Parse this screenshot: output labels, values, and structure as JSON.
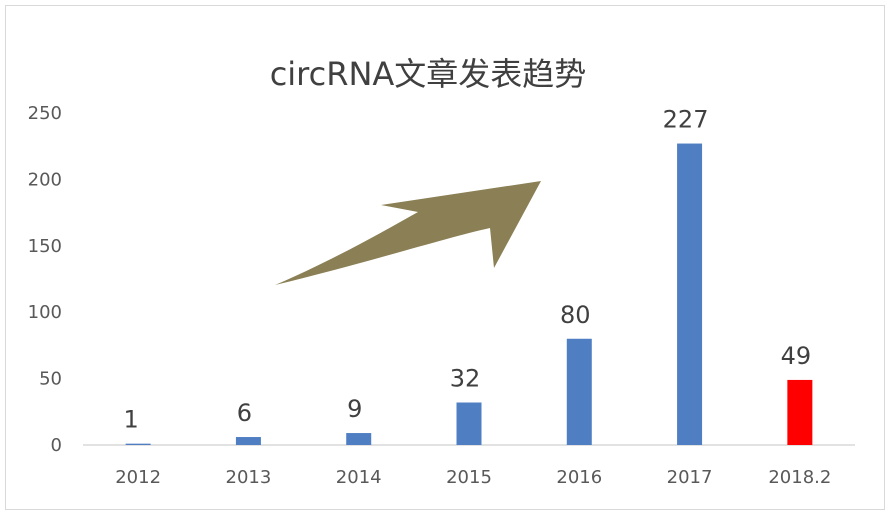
{
  "chart_data": {
    "type": "bar",
    "title": "circRNA文章发表趋势",
    "categories": [
      "2012",
      "2013",
      "2014",
      "2015",
      "2016",
      "2017",
      "2018.2"
    ],
    "values": [
      1,
      6,
      9,
      32,
      80,
      227,
      49
    ],
    "data_labels": [
      "1",
      "6",
      "9",
      "32",
      "80",
      "227",
      "49"
    ],
    "bar_colors": [
      "#4f7fc2",
      "#4f7fc2",
      "#4f7fc2",
      "#4f7fc2",
      "#4f7fc2",
      "#4f7fc2",
      "#ff0000"
    ],
    "yticks": [
      "0",
      "50",
      "100",
      "150",
      "200",
      "250"
    ],
    "ylim": [
      0,
      250
    ],
    "xlabel": "",
    "ylabel": "",
    "grid": false,
    "legend": "none",
    "annotation_arrow_color": "#8b8055"
  }
}
